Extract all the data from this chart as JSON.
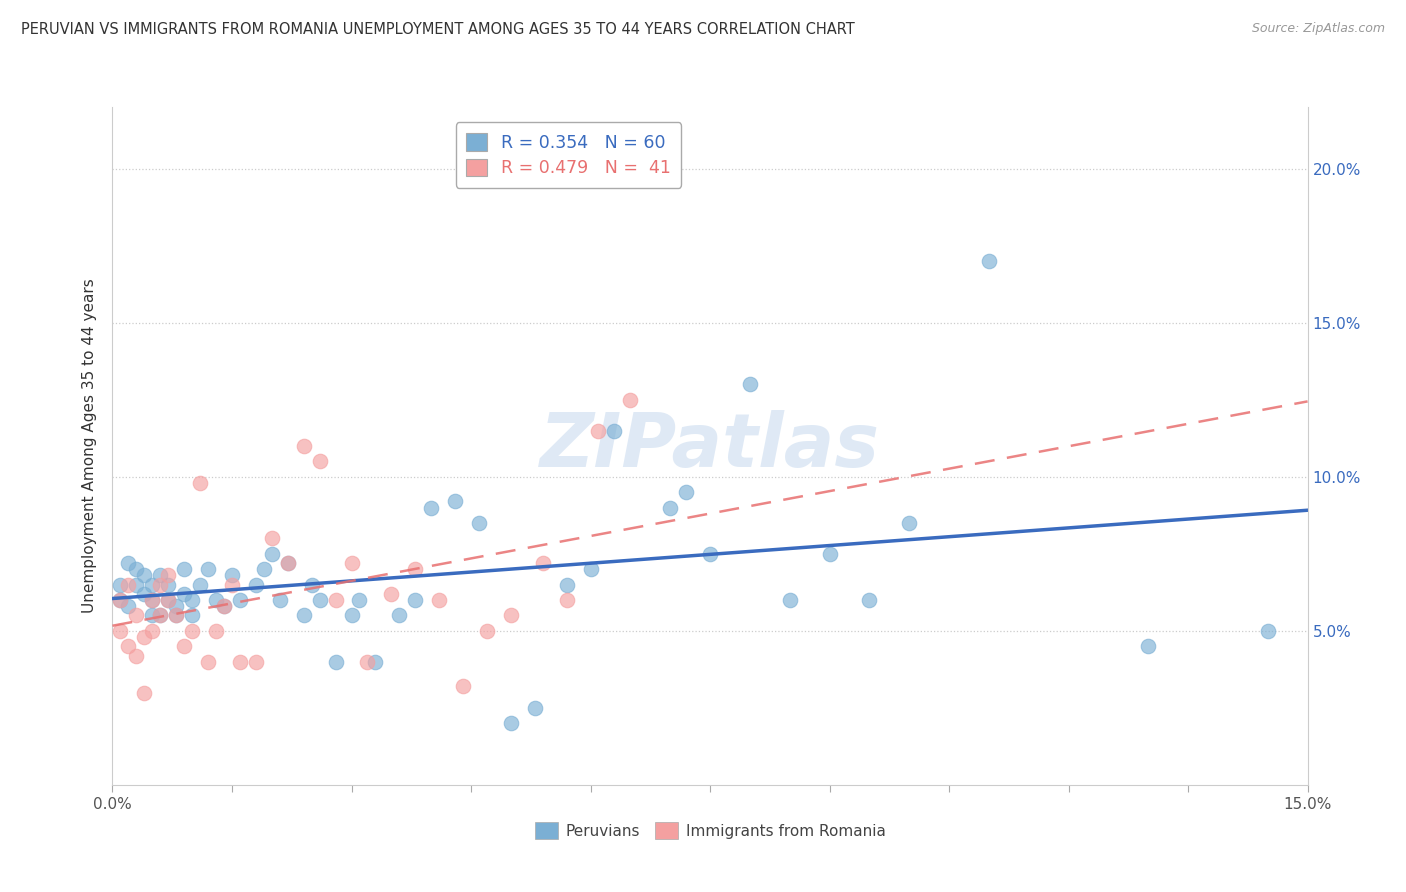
{
  "title": "PERUVIAN VS IMMIGRANTS FROM ROMANIA UNEMPLOYMENT AMONG AGES 35 TO 44 YEARS CORRELATION CHART",
  "source": "Source: ZipAtlas.com",
  "ylabel": "Unemployment Among Ages 35 to 44 years",
  "xlim": [
    0.0,
    0.15
  ],
  "ylim": [
    0.0,
    0.22
  ],
  "yticks": [
    0.05,
    0.1,
    0.15,
    0.2
  ],
  "yticklabels": [
    "5.0%",
    "10.0%",
    "15.0%",
    "20.0%"
  ],
  "peruvian_color": "#7bafd4",
  "romania_color": "#f4a0a0",
  "peruvian_line_color": "#3a6bbf",
  "romania_line_color": "#e87070",
  "watermark": "ZIPatlas",
  "legend_r_peruvian": "0.354",
  "legend_n_peruvian": "60",
  "legend_r_romania": "0.479",
  "legend_n_romania": "41",
  "peruvian_x": [
    0.001,
    0.001,
    0.002,
    0.002,
    0.003,
    0.003,
    0.004,
    0.004,
    0.005,
    0.005,
    0.005,
    0.006,
    0.006,
    0.007,
    0.007,
    0.008,
    0.008,
    0.009,
    0.009,
    0.01,
    0.01,
    0.011,
    0.012,
    0.013,
    0.014,
    0.015,
    0.016,
    0.018,
    0.019,
    0.02,
    0.021,
    0.022,
    0.024,
    0.025,
    0.026,
    0.028,
    0.03,
    0.031,
    0.033,
    0.036,
    0.038,
    0.04,
    0.043,
    0.046,
    0.05,
    0.053,
    0.057,
    0.06,
    0.063,
    0.07,
    0.072,
    0.075,
    0.08,
    0.085,
    0.09,
    0.095,
    0.1,
    0.11,
    0.13,
    0.145
  ],
  "peruvian_y": [
    0.065,
    0.06,
    0.058,
    0.072,
    0.065,
    0.07,
    0.062,
    0.068,
    0.055,
    0.065,
    0.06,
    0.055,
    0.068,
    0.06,
    0.065,
    0.055,
    0.058,
    0.062,
    0.07,
    0.06,
    0.055,
    0.065,
    0.07,
    0.06,
    0.058,
    0.068,
    0.06,
    0.065,
    0.07,
    0.075,
    0.06,
    0.072,
    0.055,
    0.065,
    0.06,
    0.04,
    0.055,
    0.06,
    0.04,
    0.055,
    0.06,
    0.09,
    0.092,
    0.085,
    0.02,
    0.025,
    0.065,
    0.07,
    0.115,
    0.09,
    0.095,
    0.075,
    0.13,
    0.06,
    0.075,
    0.06,
    0.085,
    0.17,
    0.045,
    0.05
  ],
  "romania_x": [
    0.001,
    0.001,
    0.002,
    0.002,
    0.003,
    0.003,
    0.004,
    0.004,
    0.005,
    0.005,
    0.006,
    0.006,
    0.007,
    0.007,
    0.008,
    0.009,
    0.01,
    0.011,
    0.012,
    0.013,
    0.014,
    0.015,
    0.016,
    0.018,
    0.02,
    0.022,
    0.024,
    0.026,
    0.028,
    0.03,
    0.032,
    0.035,
    0.038,
    0.041,
    0.044,
    0.047,
    0.05,
    0.054,
    0.057,
    0.061,
    0.065
  ],
  "romania_y": [
    0.06,
    0.05,
    0.065,
    0.045,
    0.055,
    0.042,
    0.048,
    0.03,
    0.06,
    0.05,
    0.065,
    0.055,
    0.068,
    0.06,
    0.055,
    0.045,
    0.05,
    0.098,
    0.04,
    0.05,
    0.058,
    0.065,
    0.04,
    0.04,
    0.08,
    0.072,
    0.11,
    0.105,
    0.06,
    0.072,
    0.04,
    0.062,
    0.07,
    0.06,
    0.032,
    0.05,
    0.055,
    0.072,
    0.06,
    0.115,
    0.125
  ],
  "peruvian_trendline_x": [
    0.0,
    0.15
  ],
  "romania_trendline_x": [
    0.0,
    0.15
  ]
}
